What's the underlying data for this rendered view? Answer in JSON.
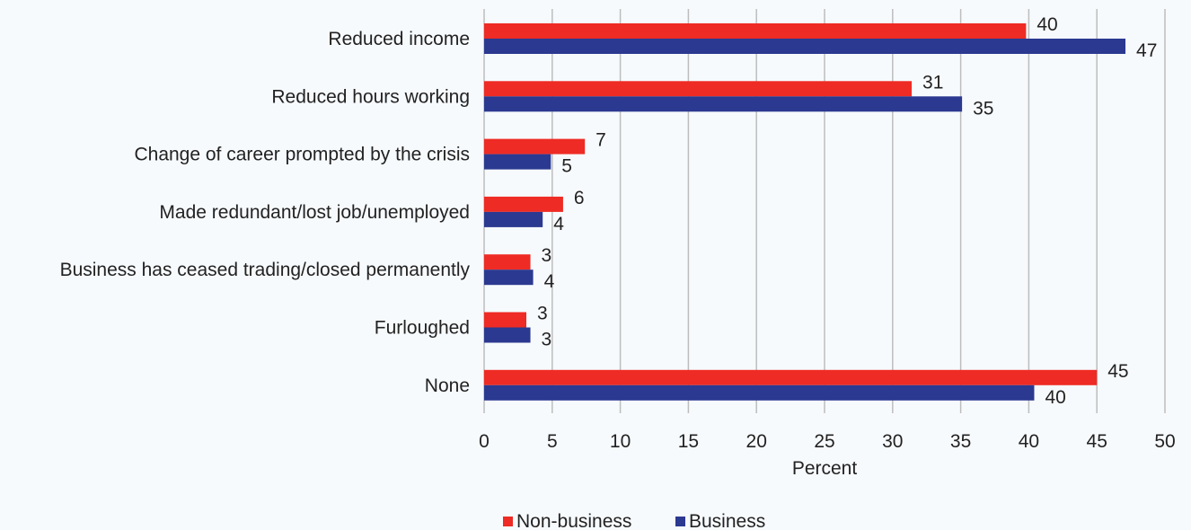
{
  "chart_data": {
    "type": "bar",
    "orientation": "horizontal",
    "categories": [
      "Reduced income",
      "Reduced hours working",
      "Change of career prompted by the crisis",
      "Made redundant/lost job/unemployed",
      "Business has ceased trading/closed permanently",
      "Furloughed",
      "None"
    ],
    "series": [
      {
        "name": "Non-business",
        "color": "#ee2b24",
        "values": [
          40,
          31,
          7,
          6,
          3,
          3,
          45
        ]
      },
      {
        "name": "Business",
        "color": "#2b3990",
        "values": [
          47,
          35,
          5,
          4,
          4,
          3,
          40
        ]
      }
    ],
    "bar_lengths": {
      "Non-business": [
        39.8,
        31.4,
        7.4,
        5.8,
        3.4,
        3.1,
        45.0
      ],
      "Business": [
        47.1,
        35.1,
        4.9,
        4.3,
        3.6,
        3.4,
        40.4
      ]
    },
    "xlabel": "Percent",
    "xlim": [
      0,
      50
    ],
    "xticks": [
      0,
      5,
      10,
      15,
      20,
      25,
      30,
      35,
      40,
      45,
      50
    ],
    "grid": true,
    "legend_position": "bottom"
  }
}
